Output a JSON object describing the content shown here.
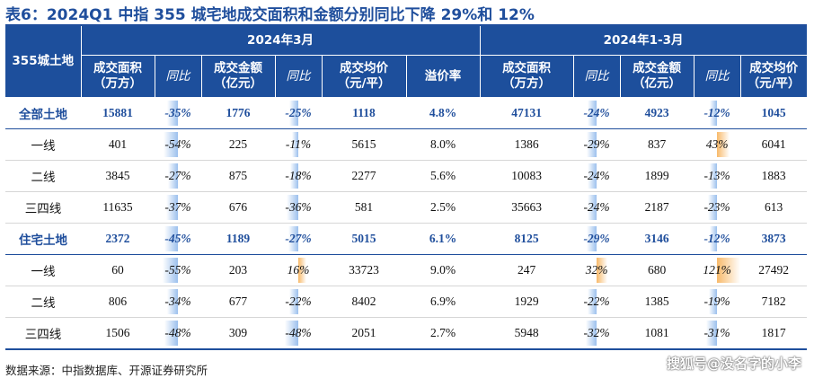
{
  "title": "表6：2024Q1 中指 355 城宅地成交面积和金额分别同比下降 29%和 12%",
  "header": {
    "corner": "355城土地",
    "group_march": "2024年3月",
    "group_q1": "2024年1-3月",
    "area_line1": "成交面积",
    "area_line2": "（万方）",
    "yoy": "同比",
    "amount_line1": "成交金额",
    "amount_line2": "（亿元）",
    "price_line1": "成交均价",
    "price_line2": "（元/平）",
    "premium": "溢价率"
  },
  "rows": [
    {
      "label": "全部土地",
      "m_area": "15881",
      "m_area_yoy": "-35%",
      "m_amt": "1776",
      "m_amt_yoy": "-25%",
      "m_price": "1118",
      "m_prem": "4.8%",
      "q_area": "47131",
      "q_area_yoy": "-24%",
      "q_amt": "4923",
      "q_amt_yoy": "-12%",
      "q_price": "1045"
    },
    {
      "label": "一线",
      "m_area": "401",
      "m_area_yoy": "-54%",
      "m_amt": "225",
      "m_amt_yoy": "-11%",
      "m_price": "5615",
      "m_prem": "8.0%",
      "q_area": "1386",
      "q_area_yoy": "-29%",
      "q_amt": "837",
      "q_amt_yoy": "43%",
      "q_price": "6041"
    },
    {
      "label": "二线",
      "m_area": "3845",
      "m_area_yoy": "-27%",
      "m_amt": "875",
      "m_amt_yoy": "-18%",
      "m_price": "2277",
      "m_prem": "5.6%",
      "q_area": "10083",
      "q_area_yoy": "-24%",
      "q_amt": "1899",
      "q_amt_yoy": "-13%",
      "q_price": "1883"
    },
    {
      "label": "三四线",
      "m_area": "11635",
      "m_area_yoy": "-37%",
      "m_amt": "676",
      "m_amt_yoy": "-36%",
      "m_price": "581",
      "m_prem": "2.5%",
      "q_area": "35663",
      "q_area_yoy": "-24%",
      "q_amt": "2187",
      "q_amt_yoy": "-23%",
      "q_price": "613"
    },
    {
      "label": "住宅土地",
      "m_area": "2372",
      "m_area_yoy": "-45%",
      "m_amt": "1189",
      "m_amt_yoy": "-27%",
      "m_price": "5015",
      "m_prem": "6.1%",
      "q_area": "8125",
      "q_area_yoy": "-29%",
      "q_amt": "3146",
      "q_amt_yoy": "-12%",
      "q_price": "3873"
    },
    {
      "label": "一线",
      "m_area": "60",
      "m_area_yoy": "-55%",
      "m_amt": "203",
      "m_amt_yoy": "16%",
      "m_price": "33723",
      "m_prem": "9.0%",
      "q_area": "247",
      "q_area_yoy": "32%",
      "q_amt": "680",
      "q_amt_yoy": "121%",
      "q_price": "27492"
    },
    {
      "label": "二线",
      "m_area": "806",
      "m_area_yoy": "-34%",
      "m_amt": "677",
      "m_amt_yoy": "-22%",
      "m_price": "8402",
      "m_prem": "6.9%",
      "q_area": "1929",
      "q_area_yoy": "-22%",
      "q_amt": "1385",
      "q_amt_yoy": "-19%",
      "q_price": "7182"
    },
    {
      "label": "三四线",
      "m_area": "1506",
      "m_area_yoy": "-48%",
      "m_amt": "309",
      "m_amt_yoy": "-48%",
      "m_price": "2051",
      "m_prem": "2.7%",
      "q_area": "5948",
      "q_area_yoy": "-32%",
      "q_amt": "1081",
      "q_amt_yoy": "-31%",
      "q_price": "1817"
    }
  ],
  "source": "数据来源：中指数据库、开源证券研究所",
  "watermark": "搜狐号@没名字的小李",
  "colors": {
    "header_bg": "#1d4f9c",
    "highlight_text": "#1f4e9c",
    "negative_bar": "#91b9eb",
    "positive_bar": "#f7b25a"
  }
}
